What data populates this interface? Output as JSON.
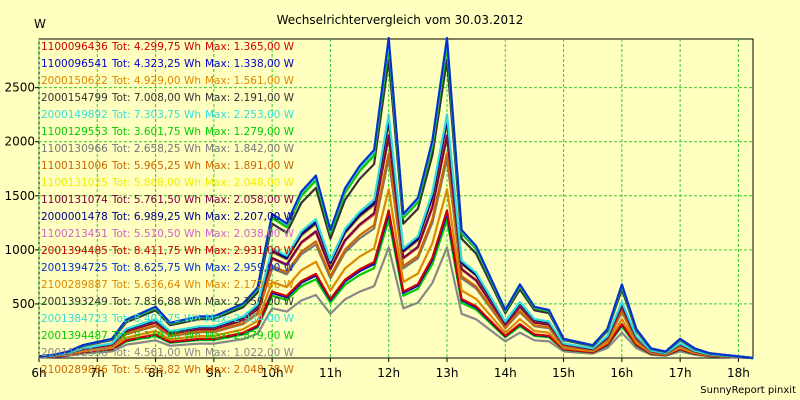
{
  "chart_data": {
    "type": "line",
    "title": "Wechselrichtervergleich vom 30.03.2012",
    "ylabel": "W",
    "xlabel": "",
    "footer": "SunnyReport pinxit",
    "grid": true,
    "ylim": [
      0,
      2950
    ],
    "xlim": [
      6,
      18.25
    ],
    "yticks": [
      500,
      1000,
      1500,
      2000,
      2500
    ],
    "xticks": [
      {
        "v": 6,
        "label": "6h"
      },
      {
        "v": 7,
        "label": "7h"
      },
      {
        "v": 8,
        "label": "8h"
      },
      {
        "v": 9,
        "label": "9h"
      },
      {
        "v": 10,
        "label": "10h"
      },
      {
        "v": 11,
        "label": "11h"
      },
      {
        "v": 12,
        "label": "12h"
      },
      {
        "v": 13,
        "label": "13h"
      },
      {
        "v": 14,
        "label": "14h"
      },
      {
        "v": 15,
        "label": "15h"
      },
      {
        "v": 16,
        "label": "16h"
      },
      {
        "v": 17,
        "label": "17h"
      },
      {
        "v": 18,
        "label": "18h"
      }
    ],
    "x": [
      6.0,
      6.25,
      6.5,
      6.75,
      7.0,
      7.25,
      7.5,
      7.75,
      8.0,
      8.25,
      8.5,
      8.75,
      9.0,
      9.25,
      9.5,
      9.75,
      10.0,
      10.25,
      10.5,
      10.75,
      11.0,
      11.25,
      11.5,
      11.75,
      12.0,
      12.25,
      12.5,
      12.75,
      13.0,
      13.25,
      13.5,
      13.75,
      14.0,
      14.25,
      14.5,
      14.75,
      15.0,
      15.25,
      15.5,
      15.75,
      16.0,
      16.25,
      16.5,
      16.75,
      17.0,
      17.25,
      17.5,
      17.75,
      18.0,
      18.25
    ],
    "shape": [
      0.005,
      0.01,
      0.02,
      0.04,
      0.05,
      0.06,
      0.12,
      0.14,
      0.16,
      0.11,
      0.12,
      0.13,
      0.13,
      0.15,
      0.17,
      0.22,
      0.45,
      0.42,
      0.52,
      0.57,
      0.4,
      0.53,
      0.6,
      0.65,
      1.0,
      0.45,
      0.5,
      0.68,
      1.0,
      0.4,
      0.35,
      0.25,
      0.15,
      0.23,
      0.16,
      0.15,
      0.06,
      0.05,
      0.04,
      0.09,
      0.23,
      0.09,
      0.03,
      0.02,
      0.06,
      0.03,
      0.015,
      0.01,
      0.005,
      0.0
    ],
    "series": [
      {
        "id": "1100096436",
        "tot": "4.299,75",
        "max": "1.365,00",
        "peak": 1365,
        "color": "#cc0000"
      },
      {
        "id": "1100096541",
        "tot": "4.323,25",
        "max": "1.338,00",
        "peak": 1338,
        "color": "#0000cc"
      },
      {
        "id": "2000150622",
        "tot": "4.929,00",
        "max": "1.561,00",
        "peak": 1561,
        "color": "#dd8800"
      },
      {
        "id": "2000154799",
        "tot": "7.008,00",
        "max": "2.191,00",
        "peak": 2191,
        "color": "#333333"
      },
      {
        "id": "2000149892",
        "tot": "7.303,75",
        "max": "2.253,00",
        "peak": 2253,
        "color": "#33dddd"
      },
      {
        "id": "1100129553",
        "tot": "3.601,75",
        "max": "1.279,00",
        "peak": 1279,
        "color": "#00cc00"
      },
      {
        "id": "1100130966",
        "tot": "2.658,25",
        "max": "1.842,00",
        "peak": 1842,
        "color": "#777777"
      },
      {
        "id": "1100131006",
        "tot": "5.965,25",
        "max": "1.891,00",
        "peak": 1891,
        "color": "#cc6600"
      },
      {
        "id": "1100131025",
        "tot": "5.868,00",
        "max": "2.048,00",
        "peak": 2048,
        "color": "#eeee00"
      },
      {
        "id": "1100131074",
        "tot": "5.761,50",
        "max": "2.058,00",
        "peak": 2058,
        "color": "#800040"
      },
      {
        "id": "2000001478",
        "tot": "6.989,25",
        "max": "2.207,00",
        "peak": 2207,
        "color": "#000088"
      },
      {
        "id": "1100213451",
        "tot": "5.510,50",
        "max": "2.038,00",
        "peak": 2038,
        "color": "#cc66cc"
      },
      {
        "id": "2001394485",
        "tot": "8.411,75",
        "max": "2.931,00",
        "peak": 2931,
        "color": "#cc0000"
      },
      {
        "id": "2001394725",
        "tot": "8.625,75",
        "max": "2.959,00",
        "peak": 2959,
        "color": "#0033cc"
      },
      {
        "id": "2100289887",
        "tot": "5.636,64",
        "max": "2.173,86",
        "peak": 2174,
        "color": "#dd8800"
      },
      {
        "id": "2001393249",
        "tot": "7.836,88",
        "max": "2.759,00",
        "peak": 2759,
        "color": "#333333"
      },
      {
        "id": "2001384723",
        "tot": "8.401,75",
        "max": "2.934,00",
        "peak": 2934,
        "color": "#33dddd"
      },
      {
        "id": "2001394487",
        "tot": "8.149,00",
        "max": "2.879,00",
        "peak": 2879,
        "color": "#00cc00"
      },
      {
        "id": "2001102358",
        "tot": "4.561,00",
        "max": "1.022,00",
        "peak": 1022,
        "color": "#888888"
      },
      {
        "id": "2100289886",
        "tot": "5.623,82",
        "max": "2.048,78",
        "peak": 2049,
        "color": "#cc6600"
      }
    ]
  }
}
